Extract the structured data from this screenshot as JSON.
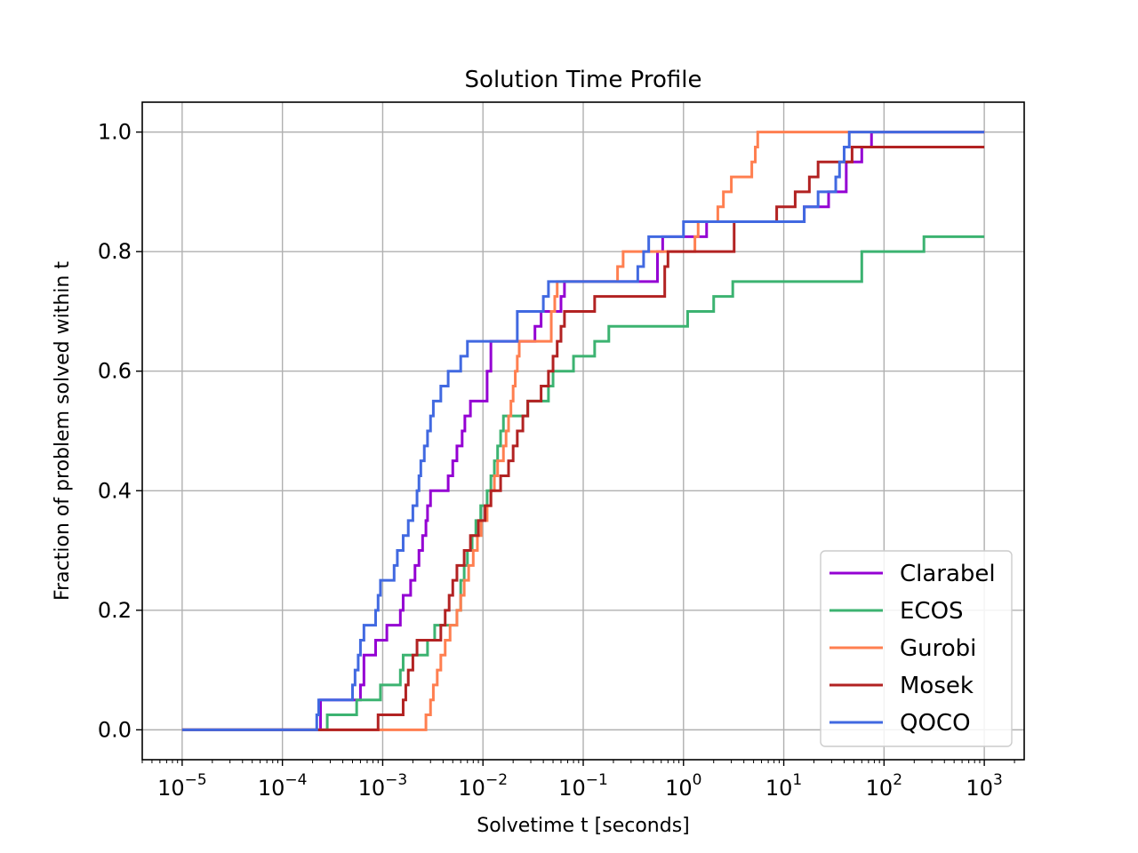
{
  "chart_data": {
    "type": "line",
    "title": "Solution Time Profile",
    "xlabel": "Solvetime t [seconds]",
    "ylabel": "Fraction of problem solved within t",
    "xscale": "log",
    "xlim": [
      4e-06,
      2500
    ],
    "ylim": [
      -0.05,
      1.05
    ],
    "xticks": [
      {
        "value": 1e-05,
        "base": "10",
        "exp": "−5"
      },
      {
        "value": 0.0001,
        "base": "10",
        "exp": "−4"
      },
      {
        "value": 0.001,
        "base": "10",
        "exp": "−3"
      },
      {
        "value": 0.01,
        "base": "10",
        "exp": "−2"
      },
      {
        "value": 0.1,
        "base": "10",
        "exp": "−1"
      },
      {
        "value": 1,
        "base": "10",
        "exp": "0"
      },
      {
        "value": 10,
        "base": "10",
        "exp": "1"
      },
      {
        "value": 100,
        "base": "10",
        "exp": "2"
      },
      {
        "value": 1000,
        "base": "10",
        "exp": "3"
      }
    ],
    "yticks": [
      {
        "value": 0.0,
        "label": "0.0"
      },
      {
        "value": 0.2,
        "label": "0.2"
      },
      {
        "value": 0.4,
        "label": "0.4"
      },
      {
        "value": 0.6,
        "label": "0.6"
      },
      {
        "value": 0.8,
        "label": "0.8"
      },
      {
        "value": 1.0,
        "label": "1.0"
      }
    ],
    "grid": true,
    "legend_position": "lower-right",
    "series": [
      {
        "name": "Clarabel",
        "color": "#9400d3",
        "steps": [
          [
            1e-05,
            0
          ],
          [
            0.00022,
            0
          ],
          [
            0.00024,
            0.05
          ],
          [
            0.00055,
            0.05
          ],
          [
            0.0006,
            0.075
          ],
          [
            0.00065,
            0.125
          ],
          [
            0.0008,
            0.125
          ],
          [
            0.00085,
            0.15
          ],
          [
            0.001,
            0.15
          ],
          [
            0.0011,
            0.175
          ],
          [
            0.0014,
            0.175
          ],
          [
            0.0015,
            0.2
          ],
          [
            0.0016,
            0.225
          ],
          [
            0.0019,
            0.25
          ],
          [
            0.0021,
            0.275
          ],
          [
            0.0023,
            0.3
          ],
          [
            0.0025,
            0.325
          ],
          [
            0.0027,
            0.35
          ],
          [
            0.0028,
            0.375
          ],
          [
            0.003,
            0.4
          ],
          [
            0.0043,
            0.4
          ],
          [
            0.0045,
            0.425
          ],
          [
            0.005,
            0.45
          ],
          [
            0.0055,
            0.475
          ],
          [
            0.0062,
            0.5
          ],
          [
            0.0066,
            0.525
          ],
          [
            0.0075,
            0.55
          ],
          [
            0.01,
            0.55
          ],
          [
            0.011,
            0.6
          ],
          [
            0.012,
            0.65
          ],
          [
            0.03,
            0.65
          ],
          [
            0.033,
            0.675
          ],
          [
            0.038,
            0.7
          ],
          [
            0.055,
            0.7
          ],
          [
            0.06,
            0.725
          ],
          [
            0.065,
            0.75
          ],
          [
            0.5,
            0.75
          ],
          [
            0.55,
            0.8
          ],
          [
            0.62,
            0.825
          ],
          [
            1.5,
            0.825
          ],
          [
            1.7,
            0.85
          ],
          [
            15,
            0.85
          ],
          [
            16,
            0.875
          ],
          [
            25,
            0.875
          ],
          [
            28,
            0.9
          ],
          [
            40,
            0.9
          ],
          [
            42,
            0.95
          ],
          [
            60,
            0.975
          ],
          [
            75,
            1.0
          ],
          [
            1000,
            1.0
          ]
        ]
      },
      {
        "name": "ECOS",
        "color": "#3cb371",
        "steps": [
          [
            1e-05,
            0
          ],
          [
            0.00025,
            0
          ],
          [
            0.00028,
            0.025
          ],
          [
            0.0005,
            0.025
          ],
          [
            0.00055,
            0.05
          ],
          [
            0.00085,
            0.05
          ],
          [
            0.00095,
            0.075
          ],
          [
            0.0014,
            0.075
          ],
          [
            0.0015,
            0.1
          ],
          [
            0.0016,
            0.125
          ],
          [
            0.0025,
            0.125
          ],
          [
            0.0028,
            0.15
          ],
          [
            0.0033,
            0.175
          ],
          [
            0.005,
            0.175
          ],
          [
            0.0055,
            0.2
          ],
          [
            0.006,
            0.25
          ],
          [
            0.0065,
            0.275
          ],
          [
            0.007,
            0.3
          ],
          [
            0.0078,
            0.325
          ],
          [
            0.0085,
            0.35
          ],
          [
            0.0095,
            0.375
          ],
          [
            0.011,
            0.4
          ],
          [
            0.012,
            0.425
          ],
          [
            0.013,
            0.45
          ],
          [
            0.014,
            0.475
          ],
          [
            0.015,
            0.5
          ],
          [
            0.016,
            0.525
          ],
          [
            0.025,
            0.525
          ],
          [
            0.028,
            0.55
          ],
          [
            0.04,
            0.55
          ],
          [
            0.045,
            0.575
          ],
          [
            0.05,
            0.6
          ],
          [
            0.07,
            0.6
          ],
          [
            0.08,
            0.625
          ],
          [
            0.12,
            0.625
          ],
          [
            0.13,
            0.65
          ],
          [
            0.17,
            0.65
          ],
          [
            0.18,
            0.675
          ],
          [
            1.0,
            0.675
          ],
          [
            1.1,
            0.7
          ],
          [
            1.8,
            0.7
          ],
          [
            2.0,
            0.725
          ],
          [
            3.0,
            0.725
          ],
          [
            3.1,
            0.75
          ],
          [
            55,
            0.75
          ],
          [
            60,
            0.8
          ],
          [
            240,
            0.8
          ],
          [
            250,
            0.825
          ],
          [
            1000,
            0.825
          ]
        ]
      },
      {
        "name": "Gurobi",
        "color": "#ff7f50",
        "steps": [
          [
            1e-05,
            0
          ],
          [
            0.0025,
            0
          ],
          [
            0.0027,
            0.025
          ],
          [
            0.003,
            0.05
          ],
          [
            0.0032,
            0.075
          ],
          [
            0.0035,
            0.1
          ],
          [
            0.0038,
            0.125
          ],
          [
            0.0042,
            0.15
          ],
          [
            0.0047,
            0.175
          ],
          [
            0.0055,
            0.2
          ],
          [
            0.006,
            0.225
          ],
          [
            0.0065,
            0.25
          ],
          [
            0.0072,
            0.275
          ],
          [
            0.008,
            0.3
          ],
          [
            0.0088,
            0.325
          ],
          [
            0.0096,
            0.35
          ],
          [
            0.011,
            0.375
          ],
          [
            0.012,
            0.4
          ],
          [
            0.013,
            0.425
          ],
          [
            0.014,
            0.45
          ],
          [
            0.016,
            0.475
          ],
          [
            0.017,
            0.5
          ],
          [
            0.018,
            0.525
          ],
          [
            0.019,
            0.55
          ],
          [
            0.02,
            0.575
          ],
          [
            0.021,
            0.6
          ],
          [
            0.022,
            0.625
          ],
          [
            0.023,
            0.65
          ],
          [
            0.045,
            0.65
          ],
          [
            0.048,
            0.7
          ],
          [
            0.052,
            0.725
          ],
          [
            0.055,
            0.75
          ],
          [
            0.2,
            0.75
          ],
          [
            0.22,
            0.775
          ],
          [
            0.25,
            0.8
          ],
          [
            1.2,
            0.8
          ],
          [
            1.3,
            0.825
          ],
          [
            1.4,
            0.85
          ],
          [
            2.0,
            0.85
          ],
          [
            2.2,
            0.875
          ],
          [
            2.5,
            0.9
          ],
          [
            3.0,
            0.925
          ],
          [
            4.5,
            0.925
          ],
          [
            4.8,
            0.95
          ],
          [
            5.2,
            0.975
          ],
          [
            5.5,
            1.0
          ],
          [
            1000,
            1.0
          ]
        ]
      },
      {
        "name": "Mosek",
        "color": "#b22222",
        "steps": [
          [
            1e-05,
            0
          ],
          [
            0.00085,
            0
          ],
          [
            0.0009,
            0.025
          ],
          [
            0.0015,
            0.025
          ],
          [
            0.0016,
            0.05
          ],
          [
            0.0017,
            0.075
          ],
          [
            0.0018,
            0.1
          ],
          [
            0.002,
            0.125
          ],
          [
            0.0022,
            0.15
          ],
          [
            0.0035,
            0.15
          ],
          [
            0.0038,
            0.175
          ],
          [
            0.0042,
            0.2
          ],
          [
            0.0046,
            0.225
          ],
          [
            0.005,
            0.25
          ],
          [
            0.0055,
            0.275
          ],
          [
            0.0065,
            0.3
          ],
          [
            0.0075,
            0.325
          ],
          [
            0.009,
            0.35
          ],
          [
            0.0105,
            0.375
          ],
          [
            0.012,
            0.4
          ],
          [
            0.015,
            0.425
          ],
          [
            0.018,
            0.45
          ],
          [
            0.02,
            0.475
          ],
          [
            0.022,
            0.5
          ],
          [
            0.025,
            0.525
          ],
          [
            0.028,
            0.55
          ],
          [
            0.035,
            0.55
          ],
          [
            0.038,
            0.575
          ],
          [
            0.045,
            0.6
          ],
          [
            0.05,
            0.625
          ],
          [
            0.055,
            0.65
          ],
          [
            0.06,
            0.675
          ],
          [
            0.065,
            0.7
          ],
          [
            0.12,
            0.7
          ],
          [
            0.13,
            0.725
          ],
          [
            0.6,
            0.725
          ],
          [
            0.65,
            0.775
          ],
          [
            0.7,
            0.8
          ],
          [
            3.0,
            0.8
          ],
          [
            3.2,
            0.85
          ],
          [
            8,
            0.85
          ],
          [
            8.5,
            0.875
          ],
          [
            12,
            0.875
          ],
          [
            13,
            0.9
          ],
          [
            17,
            0.9
          ],
          [
            18,
            0.925
          ],
          [
            20,
            0.925
          ],
          [
            22,
            0.95
          ],
          [
            45,
            0.95
          ],
          [
            48,
            0.975
          ],
          [
            1000,
            0.975
          ]
        ]
      },
      {
        "name": "QOCO",
        "color": "#4169e1",
        "steps": [
          [
            1e-05,
            0
          ],
          [
            0.00021,
            0
          ],
          [
            0.00022,
            0.025
          ],
          [
            0.00023,
            0.05
          ],
          [
            0.00048,
            0.05
          ],
          [
            0.0005,
            0.075
          ],
          [
            0.00053,
            0.1
          ],
          [
            0.00057,
            0.125
          ],
          [
            0.0006,
            0.15
          ],
          [
            0.00065,
            0.175
          ],
          [
            0.0008,
            0.175
          ],
          [
            0.00085,
            0.2
          ],
          [
            0.0009,
            0.225
          ],
          [
            0.00095,
            0.25
          ],
          [
            0.0012,
            0.25
          ],
          [
            0.0013,
            0.275
          ],
          [
            0.0014,
            0.3
          ],
          [
            0.0016,
            0.325
          ],
          [
            0.0018,
            0.35
          ],
          [
            0.002,
            0.375
          ],
          [
            0.0022,
            0.4
          ],
          [
            0.0023,
            0.425
          ],
          [
            0.0024,
            0.45
          ],
          [
            0.0026,
            0.475
          ],
          [
            0.0028,
            0.5
          ],
          [
            0.003,
            0.525
          ],
          [
            0.0032,
            0.55
          ],
          [
            0.0038,
            0.575
          ],
          [
            0.0045,
            0.6
          ],
          [
            0.0055,
            0.6
          ],
          [
            0.006,
            0.625
          ],
          [
            0.007,
            0.65
          ],
          [
            0.02,
            0.65
          ],
          [
            0.022,
            0.7
          ],
          [
            0.035,
            0.7
          ],
          [
            0.04,
            0.725
          ],
          [
            0.045,
            0.75
          ],
          [
            0.3,
            0.75
          ],
          [
            0.35,
            0.775
          ],
          [
            0.4,
            0.8
          ],
          [
            0.45,
            0.825
          ],
          [
            0.9,
            0.825
          ],
          [
            1.0,
            0.85
          ],
          [
            15,
            0.85
          ],
          [
            16,
            0.875
          ],
          [
            20,
            0.875
          ],
          [
            22,
            0.9
          ],
          [
            30,
            0.9
          ],
          [
            33,
            0.925
          ],
          [
            36,
            0.95
          ],
          [
            40,
            0.975
          ],
          [
            45,
            1.0
          ],
          [
            1000,
            1.0
          ]
        ]
      }
    ]
  }
}
